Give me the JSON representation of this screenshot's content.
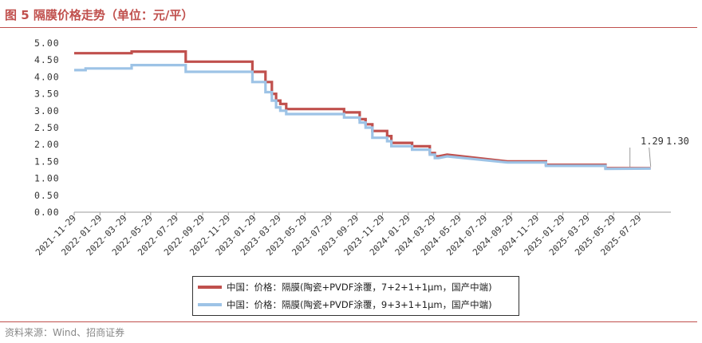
{
  "header": {
    "title": "图 5  隔膜价格走势（单位：元/平）"
  },
  "footer": {
    "source": "资料来源：Wind、招商证券"
  },
  "colors": {
    "accent": "#c0504d",
    "series1": "#c0504d",
    "series2": "#9dc3e6"
  },
  "chart_data": {
    "type": "line",
    "title": "",
    "xlabel": "",
    "ylabel": "",
    "ylim": [
      0,
      5
    ],
    "yticks": [
      "0.00",
      "0.50",
      "1.00",
      "1.50",
      "2.00",
      "2.50",
      "3.00",
      "3.50",
      "4.00",
      "4.50",
      "5.00"
    ],
    "xticks": [
      "2021-11-29",
      "2022-01-29",
      "2022-03-29",
      "2022-05-29",
      "2022-07-29",
      "2022-09-29",
      "2022-11-29",
      "2023-01-29",
      "2023-03-29",
      "2023-05-29",
      "2023-07-29",
      "2023-09-29",
      "2023-11-29",
      "2024-01-29",
      "2024-03-29",
      "2024-05-29",
      "2024-07-29",
      "2024-09-29",
      "2024-11-29",
      "2025-01-29",
      "2025-03-29",
      "2025-05-29",
      "2025-07-29"
    ],
    "grid": false,
    "legend_position": "bottom",
    "annotations": [
      "1.29",
      "1.30"
    ],
    "series": [
      {
        "name": "中国：价格：隔膜(陶瓷+PVDF涂覆，7+2+1+1μm，国产中端)",
        "color": "#c0504d",
        "points": [
          [
            "2021-11-29",
            4.7
          ],
          [
            "2022-04-14",
            4.7
          ],
          [
            "2022-04-14",
            4.75
          ],
          [
            "2022-08-20",
            4.75
          ],
          [
            "2022-08-20",
            4.45
          ],
          [
            "2023-01-25",
            4.45
          ],
          [
            "2023-01-25",
            4.15
          ],
          [
            "2023-02-25",
            4.15
          ],
          [
            "2023-02-25",
            3.85
          ],
          [
            "2023-03-12",
            3.85
          ],
          [
            "2023-03-12",
            3.5
          ],
          [
            "2023-03-22",
            3.5
          ],
          [
            "2023-03-22",
            3.3
          ],
          [
            "2023-04-01",
            3.3
          ],
          [
            "2023-04-01",
            3.2
          ],
          [
            "2023-04-15",
            3.2
          ],
          [
            "2023-04-15",
            3.05
          ],
          [
            "2023-08-30",
            3.05
          ],
          [
            "2023-08-30",
            2.95
          ],
          [
            "2023-10-06",
            2.95
          ],
          [
            "2023-10-06",
            2.75
          ],
          [
            "2023-10-20",
            2.75
          ],
          [
            "2023-10-20",
            2.6
          ],
          [
            "2023-11-05",
            2.6
          ],
          [
            "2023-11-05",
            2.4
          ],
          [
            "2023-12-10",
            2.4
          ],
          [
            "2023-12-10",
            2.25
          ],
          [
            "2023-12-20",
            2.25
          ],
          [
            "2023-12-20",
            2.05
          ],
          [
            "2024-02-07",
            2.05
          ],
          [
            "2024-02-07",
            1.95
          ],
          [
            "2024-03-20",
            1.95
          ],
          [
            "2024-03-20",
            1.75
          ],
          [
            "2024-04-01",
            1.75
          ],
          [
            "2024-04-01",
            1.65
          ],
          [
            "2024-04-10",
            1.65
          ],
          [
            "2024-04-30",
            1.7
          ],
          [
            "2024-09-20",
            1.5
          ],
          [
            "2024-12-20",
            1.5
          ],
          [
            "2024-12-20",
            1.4
          ],
          [
            "2025-05-10",
            1.4
          ],
          [
            "2025-05-10",
            1.3
          ],
          [
            "2025-08-25",
            1.3
          ]
        ]
      },
      {
        "name": "中国：价格：隔膜(陶瓷+PVDF涂覆，9+3+1+1μm，国产中端)",
        "color": "#9dc3e6",
        "points": [
          [
            "2021-11-29",
            4.2
          ],
          [
            "2021-12-26",
            4.2
          ],
          [
            "2021-12-26",
            4.25
          ],
          [
            "2022-04-14",
            4.25
          ],
          [
            "2022-04-14",
            4.35
          ],
          [
            "2022-08-20",
            4.35
          ],
          [
            "2022-08-20",
            4.15
          ],
          [
            "2023-01-25",
            4.15
          ],
          [
            "2023-01-25",
            3.85
          ],
          [
            "2023-02-25",
            3.85
          ],
          [
            "2023-02-25",
            3.55
          ],
          [
            "2023-03-12",
            3.55
          ],
          [
            "2023-03-12",
            3.3
          ],
          [
            "2023-03-22",
            3.3
          ],
          [
            "2023-03-22",
            3.1
          ],
          [
            "2023-04-01",
            3.1
          ],
          [
            "2023-04-01",
            3.0
          ],
          [
            "2023-04-15",
            3.0
          ],
          [
            "2023-04-15",
            2.9
          ],
          [
            "2023-08-30",
            2.9
          ],
          [
            "2023-08-30",
            2.8
          ],
          [
            "2023-10-06",
            2.8
          ],
          [
            "2023-10-06",
            2.65
          ],
          [
            "2023-10-20",
            2.65
          ],
          [
            "2023-10-20",
            2.5
          ],
          [
            "2023-11-05",
            2.5
          ],
          [
            "2023-11-05",
            2.2
          ],
          [
            "2023-12-10",
            2.2
          ],
          [
            "2023-12-10",
            2.1
          ],
          [
            "2023-12-20",
            2.1
          ],
          [
            "2023-12-20",
            1.95
          ],
          [
            "2024-02-07",
            1.95
          ],
          [
            "2024-02-07",
            1.85
          ],
          [
            "2024-03-20",
            1.85
          ],
          [
            "2024-03-20",
            1.7
          ],
          [
            "2024-04-01",
            1.7
          ],
          [
            "2024-04-01",
            1.6
          ],
          [
            "2024-04-10",
            1.6
          ],
          [
            "2024-04-30",
            1.65
          ],
          [
            "2024-09-20",
            1.47
          ],
          [
            "2024-12-20",
            1.47
          ],
          [
            "2024-12-20",
            1.37
          ],
          [
            "2025-05-10",
            1.37
          ],
          [
            "2025-05-10",
            1.28
          ],
          [
            "2025-08-25",
            1.29
          ]
        ]
      }
    ]
  },
  "legend": {
    "items": [
      {
        "label": "中国：价格：隔膜(陶瓷+PVDF涂覆，7+2+1+1μm，国产中端)",
        "color": "#c0504d"
      },
      {
        "label": "中国：价格：隔膜(陶瓷+PVDF涂覆，9+3+1+1μm，国产中端)",
        "color": "#9dc3e6"
      }
    ]
  }
}
